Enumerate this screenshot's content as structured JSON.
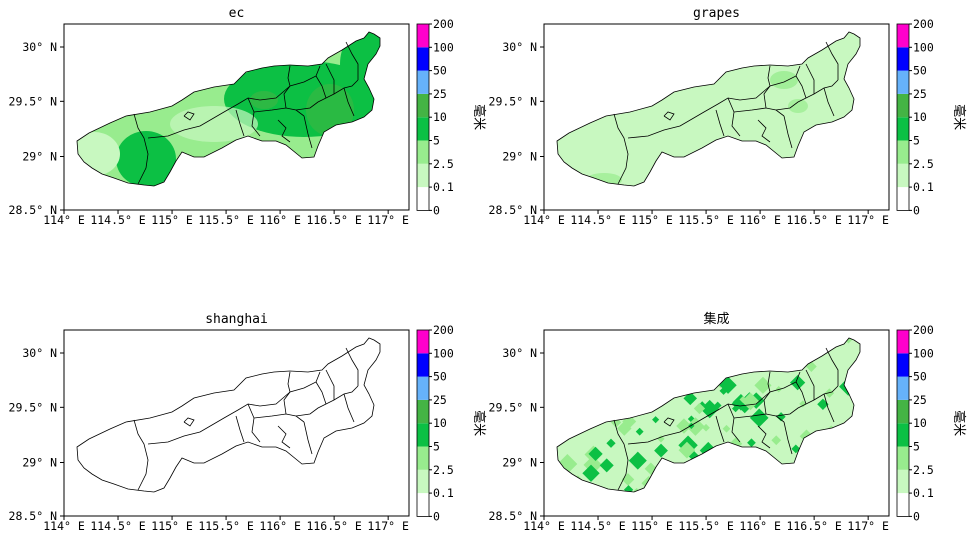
{
  "panels": [
    {
      "id": "ec",
      "title": "ec"
    },
    {
      "id": "grapes",
      "title": "grapes"
    },
    {
      "id": "shanghai",
      "title": "shanghai"
    },
    {
      "id": "ensemble",
      "title": "集成"
    }
  ],
  "axes": {
    "x_ticks": [
      "114° E",
      "114.5° E",
      "115° E",
      "115.5° E",
      "116° E",
      "116.5° E",
      "117° E"
    ],
    "y_ticks": [
      "28.5° N",
      "29° N",
      "29.5° N",
      "30° N"
    ]
  },
  "colorbar": {
    "unit_label": "毫米",
    "levels": [
      "0",
      "0.1",
      "2.5",
      "5",
      "10",
      "25",
      "50",
      "100",
      "200"
    ],
    "colors": [
      "#ffffff",
      "#c8f8c0",
      "#98ec8e",
      "#0cc044",
      "#44b444",
      "#66b2fa",
      "#0000ff",
      "#ff00cc"
    ]
  },
  "colors": {
    "green_pale": "#c8f8c0",
    "green_light": "#98ec8e",
    "green_mid": "#0cc044",
    "green_dark": "#44b444"
  }
}
